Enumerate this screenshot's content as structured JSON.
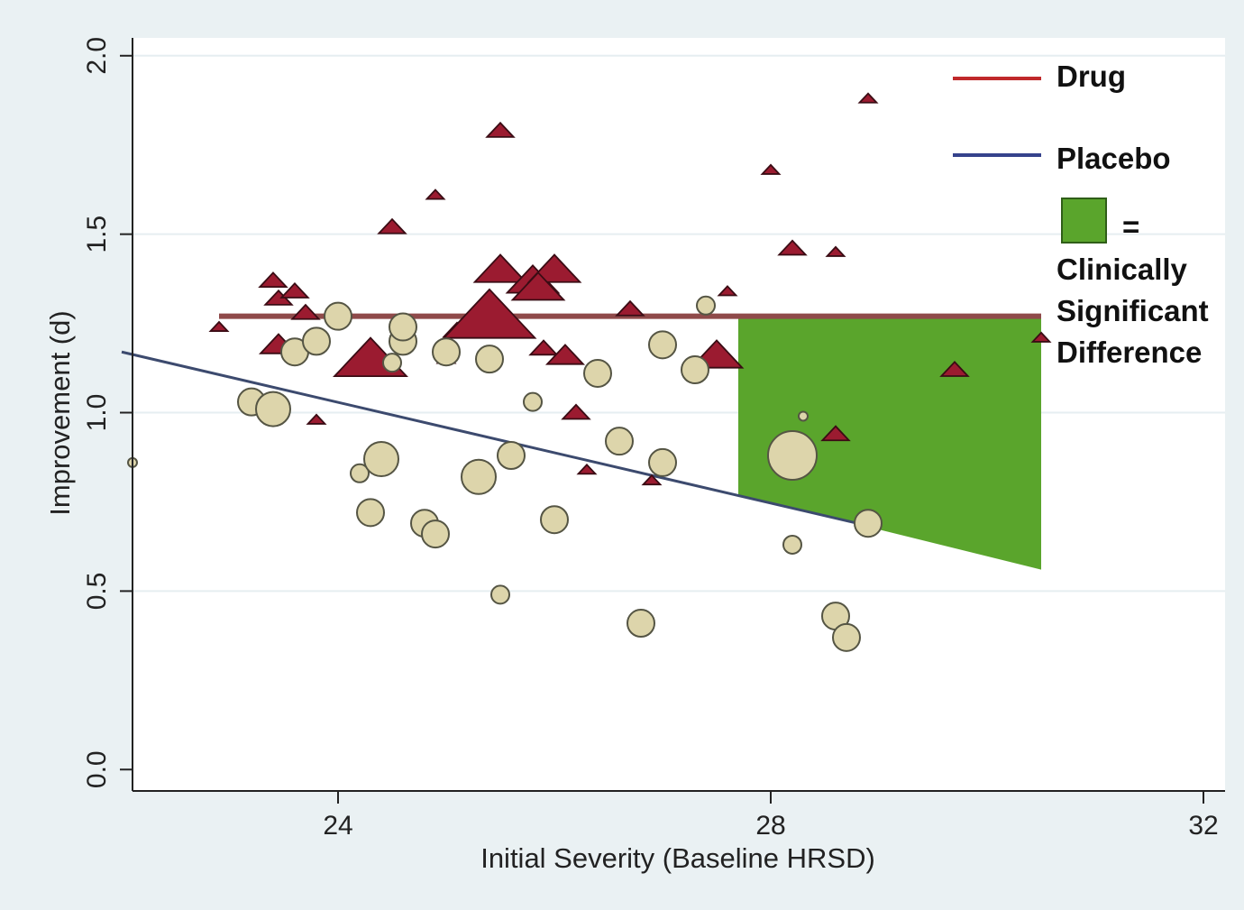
{
  "chart_data": {
    "type": "scatter",
    "xlabel": "Initial Severity (Baseline HRSD)",
    "ylabel": "Improvement (d)",
    "xlim": [
      22.1,
      32.2
    ],
    "ylim": [
      -0.06,
      2.05
    ],
    "xticks": [
      "24",
      "28",
      "32"
    ],
    "yticks": [
      "0.0",
      "0.5",
      "1.0",
      "1.5",
      "2.0"
    ],
    "grid": "horizontal",
    "legend_position": "right",
    "legend": {
      "drug": "Drug",
      "placebo": "Placebo",
      "equals": "=",
      "region_lines": [
        "Clinically",
        "Significant",
        "Difference"
      ]
    },
    "colors": {
      "drug_line": "#c0292b",
      "placebo_line": "#35428c",
      "drug_marker": "#9b1b30",
      "placebo_marker": "#ddd5ab",
      "region_fill": "#5aa52c",
      "plot_bg": "#eaf1f3"
    },
    "drug_fit": {
      "x": [
        22.9,
        30.5
      ],
      "y": [
        1.27,
        1.27
      ]
    },
    "placebo_fit": {
      "x": [
        22.0,
        28.8
      ],
      "y": [
        1.17,
        0.69
      ]
    },
    "significant_region": {
      "x_start": 27.7,
      "x_end": 30.5,
      "upper_y": 1.27,
      "lower_y_start": 0.77,
      "lower_y_end": 0.56
    },
    "series": [
      {
        "name": "Drug",
        "marker": "triangle",
        "points": [
          [
            22.9,
            1.24,
            1
          ],
          [
            23.4,
            1.37,
            2
          ],
          [
            23.45,
            1.32,
            2
          ],
          [
            23.6,
            1.34,
            2
          ],
          [
            23.7,
            1.28,
            2
          ],
          [
            23.45,
            1.19,
            3
          ],
          [
            23.8,
            0.98,
            1
          ],
          [
            24.3,
            1.15,
            5
          ],
          [
            24.5,
            1.52,
            2
          ],
          [
            25.0,
            1.15,
            1
          ],
          [
            24.9,
            1.61,
            1
          ],
          [
            25.1,
            1.23,
            2
          ],
          [
            25.5,
            1.79,
            2
          ],
          [
            25.4,
            1.27,
            6
          ],
          [
            25.5,
            1.4,
            4
          ],
          [
            25.8,
            1.37,
            4
          ],
          [
            26.0,
            1.4,
            4
          ],
          [
            25.85,
            1.35,
            4
          ],
          [
            25.9,
            1.18,
            2
          ],
          [
            26.1,
            1.16,
            3
          ],
          [
            26.2,
            1.0,
            2
          ],
          [
            26.3,
            0.84,
            1
          ],
          [
            26.7,
            1.29,
            2
          ],
          [
            26.9,
            0.81,
            1
          ],
          [
            27.5,
            1.16,
            4
          ],
          [
            27.6,
            1.34,
            1
          ],
          [
            28.0,
            1.68,
            1
          ],
          [
            28.2,
            1.46,
            2
          ],
          [
            28.6,
            1.45,
            1
          ],
          [
            28.6,
            0.94,
            2
          ],
          [
            28.9,
            1.88,
            1
          ],
          [
            29.7,
            1.12,
            2
          ],
          [
            30.5,
            1.21,
            1
          ]
        ]
      },
      {
        "name": "Placebo",
        "marker": "circle",
        "points": [
          [
            22.1,
            0.86,
            1
          ],
          [
            23.2,
            1.03,
            3
          ],
          [
            23.4,
            1.01,
            4
          ],
          [
            23.6,
            1.17,
            3
          ],
          [
            23.8,
            1.2,
            3
          ],
          [
            24.0,
            1.27,
            3
          ],
          [
            24.2,
            0.83,
            2
          ],
          [
            24.3,
            0.72,
            3
          ],
          [
            24.4,
            0.87,
            4
          ],
          [
            24.5,
            1.14,
            2
          ],
          [
            24.6,
            1.2,
            3
          ],
          [
            24.6,
            1.24,
            3
          ],
          [
            24.8,
            0.69,
            3
          ],
          [
            24.9,
            0.66,
            3
          ],
          [
            25.0,
            1.17,
            3
          ],
          [
            25.3,
            0.82,
            4
          ],
          [
            25.4,
            1.15,
            3
          ],
          [
            25.5,
            0.49,
            2
          ],
          [
            25.6,
            0.88,
            3
          ],
          [
            25.8,
            1.03,
            2
          ],
          [
            26.0,
            0.7,
            3
          ],
          [
            26.4,
            1.11,
            3
          ],
          [
            26.6,
            0.92,
            3
          ],
          [
            26.8,
            0.41,
            3
          ],
          [
            27.0,
            1.19,
            3
          ],
          [
            27.0,
            0.86,
            3
          ],
          [
            27.3,
            1.12,
            3
          ],
          [
            27.4,
            1.3,
            2
          ],
          [
            28.2,
            0.88,
            5
          ],
          [
            28.3,
            0.99,
            1
          ],
          [
            28.2,
            0.63,
            2
          ],
          [
            28.6,
            0.43,
            3
          ],
          [
            28.7,
            0.37,
            3
          ],
          [
            28.9,
            0.69,
            3
          ]
        ]
      }
    ]
  }
}
